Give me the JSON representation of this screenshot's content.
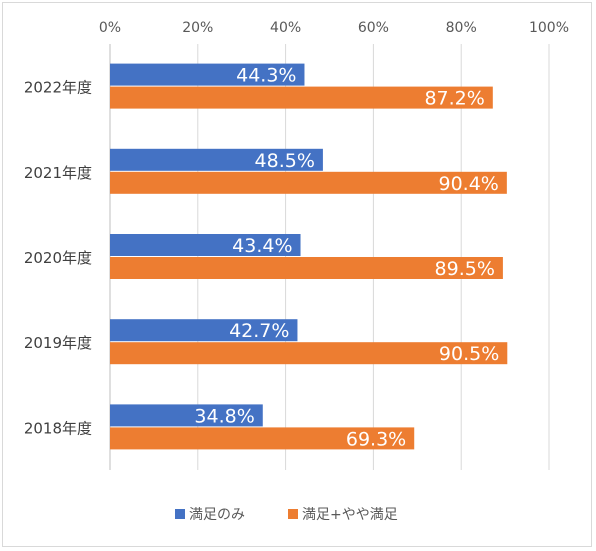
{
  "chart_data": {
    "type": "bar",
    "orientation": "horizontal",
    "categories": [
      "2022年度",
      "2021年度",
      "2020年度",
      "2019年度",
      "2018年度"
    ],
    "series": [
      {
        "name": "満足のみ",
        "color": "#4472C4",
        "values": [
          44.3,
          48.5,
          43.4,
          42.7,
          34.8
        ],
        "labels": [
          "44.3%",
          "48.5%",
          "43.4%",
          "42.7%",
          "34.8%"
        ]
      },
      {
        "name": "満足+やや満足",
        "color": "#ED7D31",
        "values": [
          87.2,
          90.4,
          89.5,
          90.5,
          69.3
        ],
        "labels": [
          "87.2%",
          "90.4%",
          "89.5%",
          "90.5%",
          "69.3%"
        ]
      }
    ],
    "xlim": [
      0,
      100
    ],
    "xticks": [
      "0%",
      "20%",
      "40%",
      "60%",
      "80%",
      "100%"
    ],
    "x_axis_position": "top",
    "grid": true,
    "legend_position": "bottom"
  }
}
